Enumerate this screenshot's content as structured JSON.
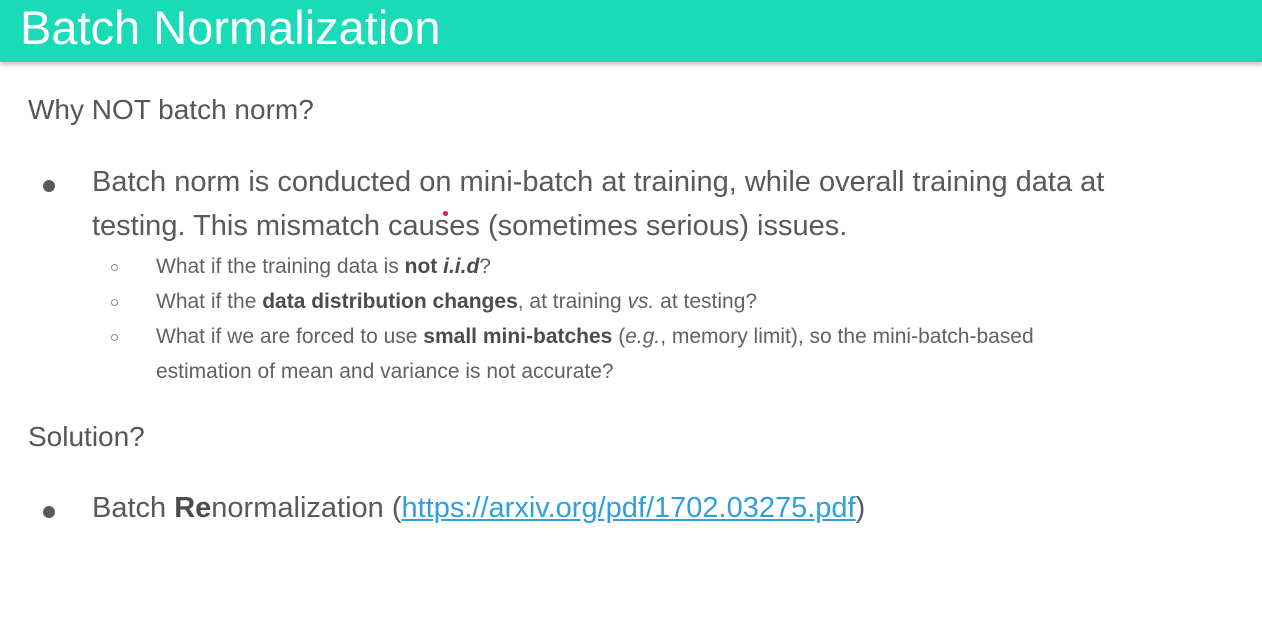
{
  "slide": {
    "title": "Batch Normalization",
    "heading1": "Why NOT batch norm?",
    "point1": {
      "line1": "Batch norm is conducted on mini-batch at training, while overall training data at",
      "line2": "testing. This mismatch causes (sometimes serious) issues."
    },
    "subpoints": {
      "s1": {
        "pre": "What if the training data is ",
        "bold": "not ",
        "bolditalic": "i.i.d",
        "post": "?"
      },
      "s2": {
        "pre": "What if the ",
        "bold": "data distribution changes",
        "mid": ", at training ",
        "italic": "vs.",
        "post": " at testing?"
      },
      "s3": {
        "pre": "What if we are forced to use ",
        "bold": "small mini-batches",
        "mid1": " (",
        "italic": "e.g.",
        "mid2": ", memory limit), so the mini-batch-based",
        "line2": "estimation of mean and variance is not accurate?"
      }
    },
    "heading2": "Solution?",
    "point2": {
      "pre": "Batch ",
      "bold": "Re",
      "mid": "normalization (",
      "link": "https://arxiv.org/pdf/1702.03275.pdf",
      "post": ")"
    }
  },
  "colors": {
    "title_bar": "#19dbb8",
    "link": "#2f9fe0",
    "text": "#595959"
  }
}
